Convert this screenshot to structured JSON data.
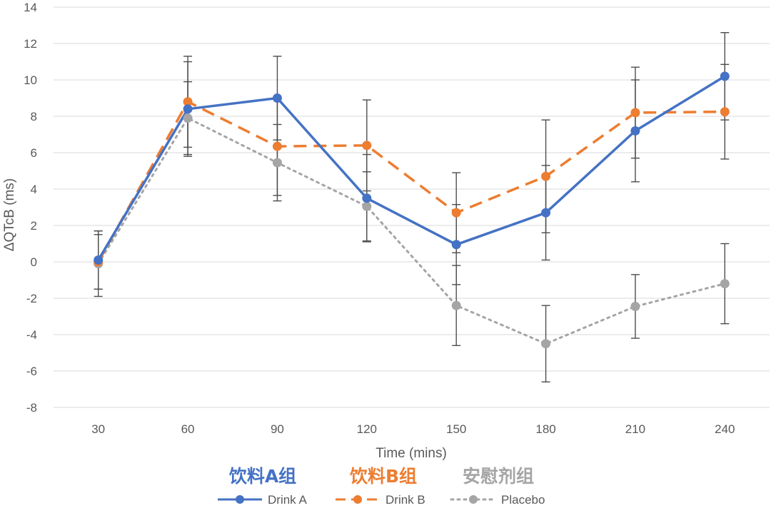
{
  "chart_data": {
    "type": "line",
    "categories": [
      "30",
      "60",
      "90",
      "120",
      "150",
      "180",
      "210",
      "240"
    ],
    "xlabel": "Time (mins)",
    "ylabel": "ΔQTcB (ms)",
    "ylim": [
      -8,
      14
    ],
    "yticks": [
      -8,
      -6,
      -4,
      -2,
      0,
      2,
      4,
      6,
      8,
      10,
      12,
      14
    ],
    "grid": "horizontal",
    "legend_position": "bottom",
    "series": [
      {
        "name": "Drink A",
        "group_label": "饮料A组",
        "color": "#4472C4",
        "style": "solid",
        "values": [
          0.1,
          8.4,
          9.0,
          3.5,
          0.95,
          2.7,
          7.2,
          10.2
        ],
        "error": [
          1.6,
          2.6,
          2.3,
          2.4,
          2.2,
          2.6,
          2.8,
          2.4
        ]
      },
      {
        "name": "Drink B",
        "group_label": "饮料B组",
        "color": "#ED7D31",
        "style": "dashed",
        "values": [
          0.0,
          8.8,
          6.35,
          6.4,
          2.7,
          4.7,
          8.2,
          8.25
        ],
        "error": [
          1.5,
          2.5,
          2.7,
          2.5,
          2.2,
          3.1,
          2.5,
          2.6
        ]
      },
      {
        "name": "Placebo",
        "group_label": "安慰剂组",
        "color": "#A5A5A5",
        "style": "dotted",
        "values": [
          -0.1,
          7.9,
          5.45,
          3.05,
          -2.4,
          -4.5,
          -2.45,
          -1.2
        ],
        "error": [
          1.8,
          2.0,
          2.1,
          1.9,
          2.2,
          2.1,
          1.75,
          2.2
        ]
      }
    ]
  }
}
